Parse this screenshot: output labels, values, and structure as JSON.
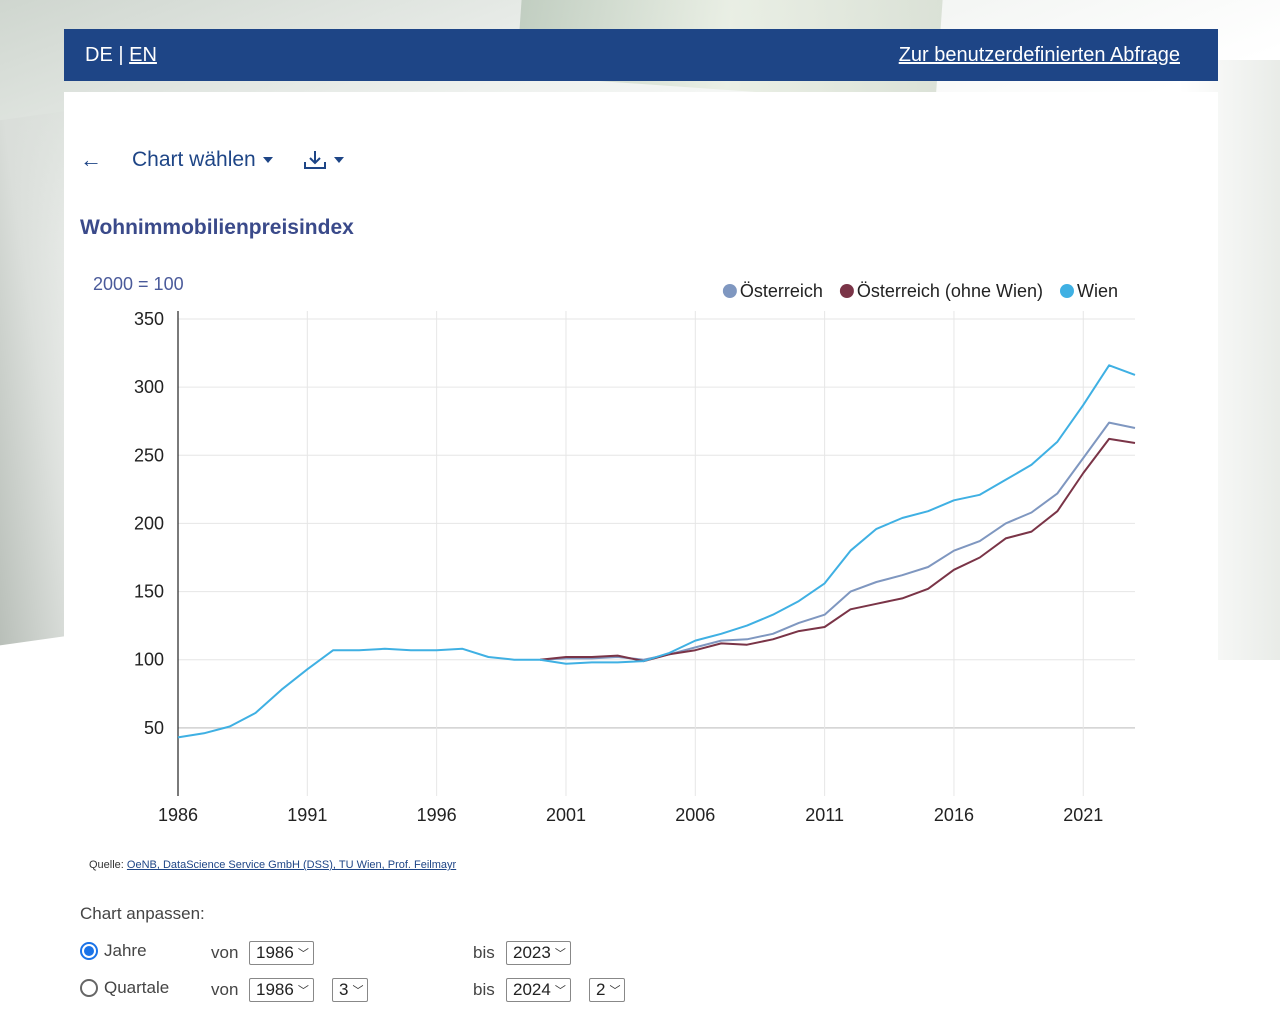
{
  "header": {
    "lang_de": "DE",
    "lang_sep": "|",
    "lang_en": "EN",
    "custom_query_link": "Zur benutzerdefinierten Abfrage"
  },
  "toolbar": {
    "back_label": "←",
    "chart_select_label": "Chart wählen"
  },
  "chart_title": "Wohnimmobilienpreisindex",
  "chart_data": {
    "type": "line",
    "unit_label": "2000 = 100",
    "xlim": [
      1986,
      2023
    ],
    "ylim": [
      0,
      350
    ],
    "x_ticks": [
      "1986",
      "1991",
      "1996",
      "2001",
      "2006",
      "2011",
      "2016",
      "2021"
    ],
    "y_ticks": [
      "50",
      "100",
      "150",
      "200",
      "250",
      "300",
      "350"
    ],
    "legend_position": "top-right",
    "grid": true,
    "series": [
      {
        "name": "Österreich",
        "color": "#7f97c0",
        "x": [
          2000,
          2001,
          2002,
          2003,
          2004,
          2005,
          2006,
          2007,
          2008,
          2009,
          2010,
          2011,
          2012,
          2013,
          2014,
          2015,
          2016,
          2017,
          2018,
          2019,
          2020,
          2021,
          2022,
          2023
        ],
        "values": [
          100,
          101,
          101,
          102,
          100,
          104,
          109,
          114,
          115,
          119,
          127,
          133,
          150,
          157,
          162,
          168,
          180,
          187,
          200,
          208,
          222,
          248,
          274,
          270
        ]
      },
      {
        "name": "Österreich (ohne Wien)",
        "color": "#7a3447",
        "x": [
          2000,
          2001,
          2002,
          2003,
          2004,
          2005,
          2006,
          2007,
          2008,
          2009,
          2010,
          2011,
          2012,
          2013,
          2014,
          2015,
          2016,
          2017,
          2018,
          2019,
          2020,
          2021,
          2022,
          2023
        ],
        "values": [
          100,
          102,
          102,
          103,
          99,
          104,
          107,
          112,
          111,
          115,
          121,
          124,
          137,
          141,
          145,
          152,
          166,
          175,
          189,
          194,
          209,
          237,
          262,
          259
        ]
      },
      {
        "name": "Wien",
        "color": "#3fb0e3",
        "x": [
          1986,
          1987,
          1988,
          1989,
          1990,
          1991,
          1992,
          1993,
          1994,
          1995,
          1996,
          1997,
          1998,
          1999,
          2000,
          2001,
          2002,
          2003,
          2004,
          2005,
          2006,
          2007,
          2008,
          2009,
          2010,
          2011,
          2012,
          2013,
          2014,
          2015,
          2016,
          2017,
          2018,
          2019,
          2020,
          2021,
          2022,
          2023
        ],
        "values": [
          43,
          46,
          51,
          61,
          78,
          93,
          107,
          107,
          108,
          107,
          107,
          108,
          102,
          100,
          100,
          97,
          98,
          98,
          99,
          105,
          114,
          119,
          125,
          133,
          143,
          156,
          180,
          196,
          204,
          209,
          217,
          221,
          232,
          243,
          260,
          287,
          316,
          309
        ]
      }
    ]
  },
  "source": {
    "label": "Quelle:",
    "link_text": "OeNB, DataScience Service GmbH (DSS), TU Wien, Prof. Feilmayr"
  },
  "adjust": {
    "label": "Chart anpassen:",
    "years": {
      "label": "Jahre",
      "von": "von",
      "from": "1986",
      "bis": "bis",
      "to": "2023",
      "selected": true
    },
    "quarters": {
      "label": "Quartale",
      "von": "von",
      "from": "1986",
      "from_q": "3",
      "bis": "bis",
      "to": "2024",
      "to_q": "2",
      "selected": false
    }
  }
}
